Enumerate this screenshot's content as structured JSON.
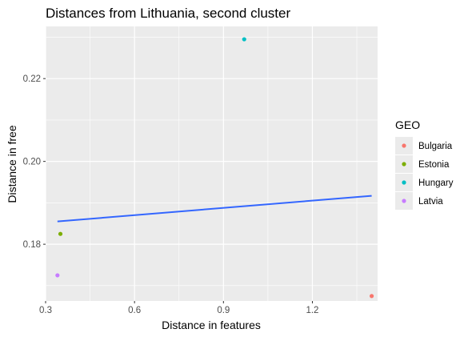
{
  "chart_data": {
    "type": "scatter",
    "title": "Distances from Lithuania, second cluster",
    "xlabel": "Distance in features",
    "ylabel": "Distance in free",
    "xlim": [
      0.3,
      1.42
    ],
    "ylim": [
      0.1663,
      0.2326
    ],
    "x_ticks": [
      0.3,
      0.6,
      0.9,
      1.2
    ],
    "x_tick_labels": [
      "0.3",
      "0.6",
      "0.9",
      "1.2"
    ],
    "y_ticks": [
      0.18,
      0.2,
      0.22
    ],
    "y_tick_labels": [
      "0.18",
      "0.20",
      "0.22"
    ],
    "grid": true,
    "legend": {
      "title": "GEO",
      "position": "right"
    },
    "series": [
      {
        "name": "Bulgaria",
        "color": "#F8766D",
        "x": [
          1.4
        ],
        "y": [
          0.1675
        ]
      },
      {
        "name": "Estonia",
        "color": "#7CAE00",
        "x": [
          0.35
        ],
        "y": [
          0.1825
        ]
      },
      {
        "name": "Hungary",
        "color": "#00BFC4",
        "x": [
          0.97
        ],
        "y": [
          0.2295
        ]
      },
      {
        "name": "Latvia",
        "color": "#C77CFF",
        "x": [
          0.34
        ],
        "y": [
          0.1725
        ]
      }
    ],
    "trend_line": {
      "color": "#3366FF",
      "x": [
        0.34,
        1.4
      ],
      "y": [
        0.1855,
        0.1917
      ]
    },
    "panel_background": "#EBEBEB",
    "grid_color": "#FFFFFF"
  }
}
